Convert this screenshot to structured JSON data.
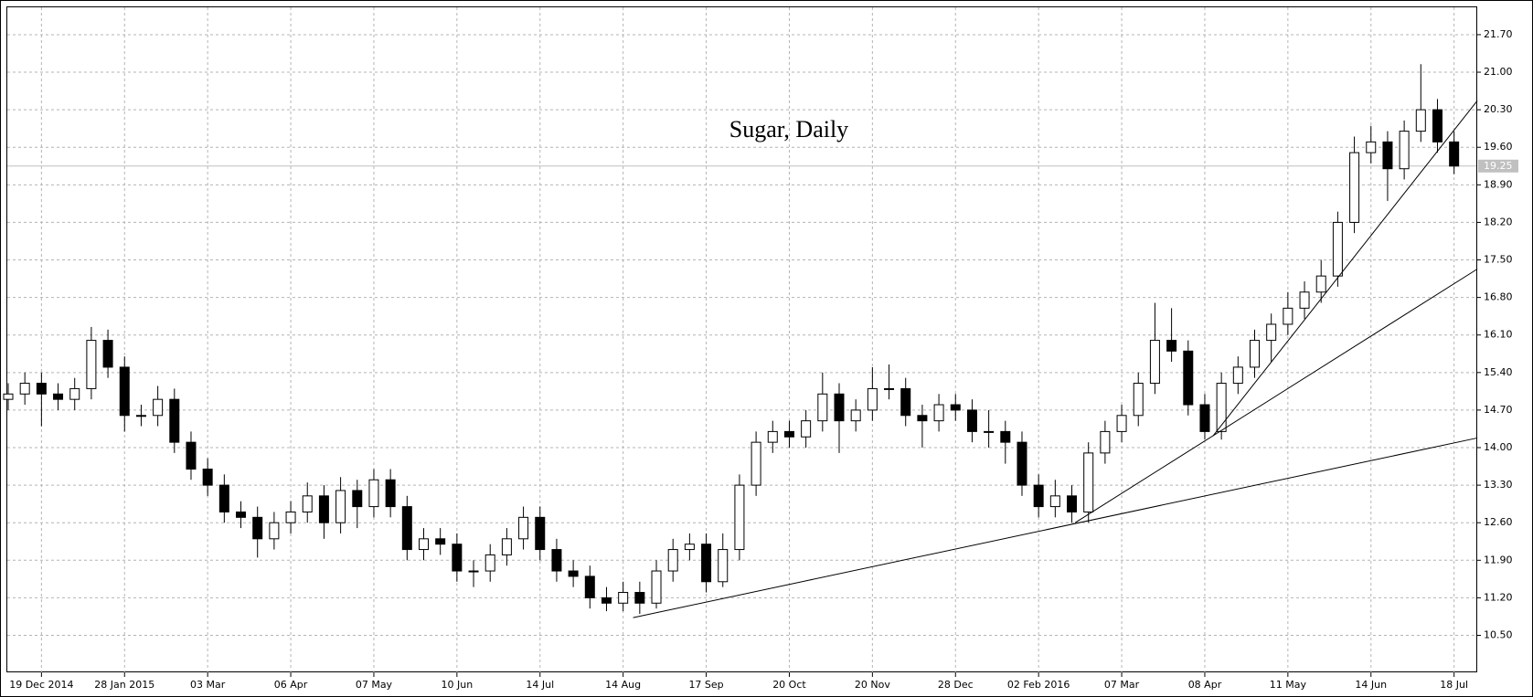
{
  "chart_data": {
    "type": "candlestick",
    "title": "Sugar, Daily",
    "categories": [
      null,
      null,
      "19 Dec 2014",
      null,
      null,
      null,
      null,
      "28 Jan 2015",
      null,
      null,
      null,
      null,
      "03 Mar",
      null,
      null,
      null,
      null,
      "06 Apr",
      null,
      null,
      null,
      null,
      "07 May",
      null,
      null,
      null,
      null,
      "10 Jun",
      null,
      null,
      null,
      null,
      "14 Jul",
      null,
      null,
      null,
      null,
      "14 Aug",
      null,
      null,
      null,
      null,
      "17 Sep",
      null,
      null,
      null,
      null,
      "20 Oct",
      null,
      null,
      null,
      null,
      "20 Nov",
      null,
      null,
      null,
      null,
      "28 Dec",
      null,
      null,
      null,
      null,
      "02 Feb 2016",
      null,
      null,
      null,
      null,
      "07 Mar",
      null,
      null,
      null,
      null,
      "08 Apr",
      null,
      null,
      null,
      null,
      "11 May",
      null,
      null,
      null,
      null,
      "14 Jun",
      null,
      null,
      null,
      null,
      "18 Jul"
    ],
    "open": [
      14.9,
      15.0,
      15.2,
      15.0,
      14.9,
      15.1,
      16.0,
      15.5,
      14.6,
      14.6,
      14.9,
      14.1,
      13.6,
      13.3,
      12.8,
      12.7,
      12.3,
      12.6,
      12.8,
      13.1,
      12.6,
      13.2,
      12.9,
      13.4,
      12.9,
      12.1,
      12.3,
      12.2,
      11.7,
      11.7,
      12.0,
      12.3,
      12.7,
      12.1,
      11.7,
      11.6,
      11.2,
      11.1,
      11.3,
      11.1,
      11.7,
      12.1,
      12.2,
      11.5,
      12.1,
      13.3,
      14.1,
      14.3,
      14.2,
      14.5,
      15.0,
      14.5,
      14.7,
      15.1,
      15.1,
      14.6,
      14.5,
      14.8,
      14.7,
      14.3,
      14.3,
      14.1,
      13.3,
      12.9,
      13.1,
      12.8,
      13.9,
      14.3,
      14.6,
      15.2,
      16.0,
      15.8,
      14.8,
      14.3,
      15.2,
      15.5,
      16.0,
      16.3,
      16.6,
      16.9,
      17.2,
      18.2,
      19.5,
      19.7,
      19.2,
      19.9,
      20.3,
      19.7
    ],
    "high": [
      15.2,
      15.4,
      15.4,
      15.2,
      15.3,
      16.25,
      16.2,
      15.7,
      14.8,
      15.15,
      15.1,
      14.3,
      13.8,
      13.5,
      13.0,
      12.9,
      12.8,
      13.0,
      13.35,
      13.3,
      13.45,
      13.4,
      13.6,
      13.6,
      13.1,
      12.5,
      12.5,
      12.4,
      11.9,
      12.2,
      12.5,
      12.9,
      12.9,
      12.3,
      11.9,
      11.8,
      11.4,
      11.5,
      11.5,
      11.9,
      12.3,
      12.4,
      12.4,
      12.4,
      13.5,
      14.3,
      14.5,
      14.5,
      14.7,
      15.4,
      15.2,
      14.9,
      15.5,
      15.55,
      15.3,
      14.8,
      15.0,
      15.0,
      14.9,
      14.7,
      14.5,
      14.3,
      13.5,
      13.4,
      13.3,
      14.1,
      14.5,
      14.8,
      15.4,
      16.7,
      16.6,
      16.0,
      15.0,
      15.4,
      15.7,
      16.2,
      16.5,
      16.9,
      17.1,
      17.5,
      18.4,
      19.8,
      20.0,
      19.9,
      20.1,
      21.15,
      20.5,
      19.9
    ],
    "low": [
      14.7,
      14.8,
      14.4,
      14.7,
      14.7,
      14.9,
      15.3,
      14.3,
      14.4,
      14.4,
      13.9,
      13.4,
      13.1,
      12.6,
      12.5,
      11.95,
      12.1,
      12.4,
      12.6,
      12.3,
      12.4,
      12.5,
      12.7,
      12.7,
      11.9,
      11.9,
      12.0,
      11.5,
      11.4,
      11.5,
      11.8,
      12.1,
      11.9,
      11.5,
      11.4,
      11.0,
      10.95,
      10.95,
      10.9,
      11.0,
      11.5,
      11.9,
      11.3,
      11.4,
      11.9,
      13.1,
      13.9,
      14.0,
      14.0,
      14.3,
      13.9,
      14.3,
      14.5,
      14.9,
      14.4,
      14.0,
      14.3,
      14.5,
      14.1,
      14.0,
      13.7,
      13.1,
      12.7,
      12.7,
      12.6,
      12.6,
      13.7,
      14.1,
      14.4,
      15.0,
      15.6,
      14.6,
      14.15,
      14.15,
      15.0,
      15.3,
      15.6,
      16.1,
      16.4,
      16.7,
      17.0,
      18.0,
      19.3,
      18.6,
      19.0,
      19.7,
      19.5,
      19.1
    ],
    "close": [
      15.0,
      15.2,
      15.0,
      14.9,
      15.1,
      16.0,
      15.5,
      14.6,
      14.6,
      14.9,
      14.1,
      13.6,
      13.3,
      12.8,
      12.7,
      12.3,
      12.6,
      12.8,
      13.1,
      12.6,
      13.2,
      12.9,
      13.4,
      12.9,
      12.1,
      12.3,
      12.2,
      11.7,
      11.7,
      12.0,
      12.3,
      12.7,
      12.1,
      11.7,
      11.6,
      11.2,
      11.1,
      11.3,
      11.1,
      11.7,
      12.1,
      12.2,
      11.5,
      12.1,
      13.3,
      14.1,
      14.3,
      14.2,
      14.5,
      15.0,
      14.5,
      14.7,
      15.1,
      15.1,
      14.6,
      14.5,
      14.8,
      14.7,
      14.3,
      14.3,
      14.1,
      13.3,
      12.9,
      13.1,
      12.8,
      13.9,
      14.3,
      14.6,
      15.2,
      16.0,
      15.8,
      14.8,
      14.3,
      15.2,
      15.5,
      16.0,
      16.3,
      16.6,
      16.9,
      17.2,
      18.2,
      19.5,
      19.7,
      19.2,
      19.9,
      20.3,
      19.7,
      19.25
    ],
    "up_color": "#ffffff",
    "down_color": "#000000",
    "ylim": [
      9.81,
      22.21
    ],
    "yticks": [
      {
        "value": 10.5,
        "label": "10.50"
      },
      {
        "value": 11.2,
        "label": "11.20"
      },
      {
        "value": 11.9,
        "label": "11.90"
      },
      {
        "value": 12.6,
        "label": "12.60"
      },
      {
        "value": 13.3,
        "label": "13.30"
      },
      {
        "value": 14.0,
        "label": "14.00"
      },
      {
        "value": 14.7,
        "label": "14.70"
      },
      {
        "value": 15.4,
        "label": "15.40"
      },
      {
        "value": 16.1,
        "label": "16.10"
      },
      {
        "value": 16.8,
        "label": "16.80"
      },
      {
        "value": 17.5,
        "label": "17.50"
      },
      {
        "value": 18.2,
        "label": "18.20"
      },
      {
        "value": 18.9,
        "label": "18.90"
      },
      {
        "value": 19.6,
        "label": "19.60"
      },
      {
        "value": 20.3,
        "label": "20.30"
      },
      {
        "value": 21.0,
        "label": "21.00"
      },
      {
        "value": 21.7,
        "label": "21.70"
      }
    ],
    "grid": true,
    "last_price": {
      "value": 19.25,
      "label": "19.25"
    },
    "trendlines": [
      {
        "x0": 37.6,
        "y0": 10.83,
        "x1": 88.4,
        "y1": 14.18
      },
      {
        "x0": 64.2,
        "y0": 12.6,
        "x1": 88.4,
        "y1": 17.33
      },
      {
        "x0": 72.5,
        "y0": 14.22,
        "x1": 88.4,
        "y1": 20.47
      }
    ]
  }
}
